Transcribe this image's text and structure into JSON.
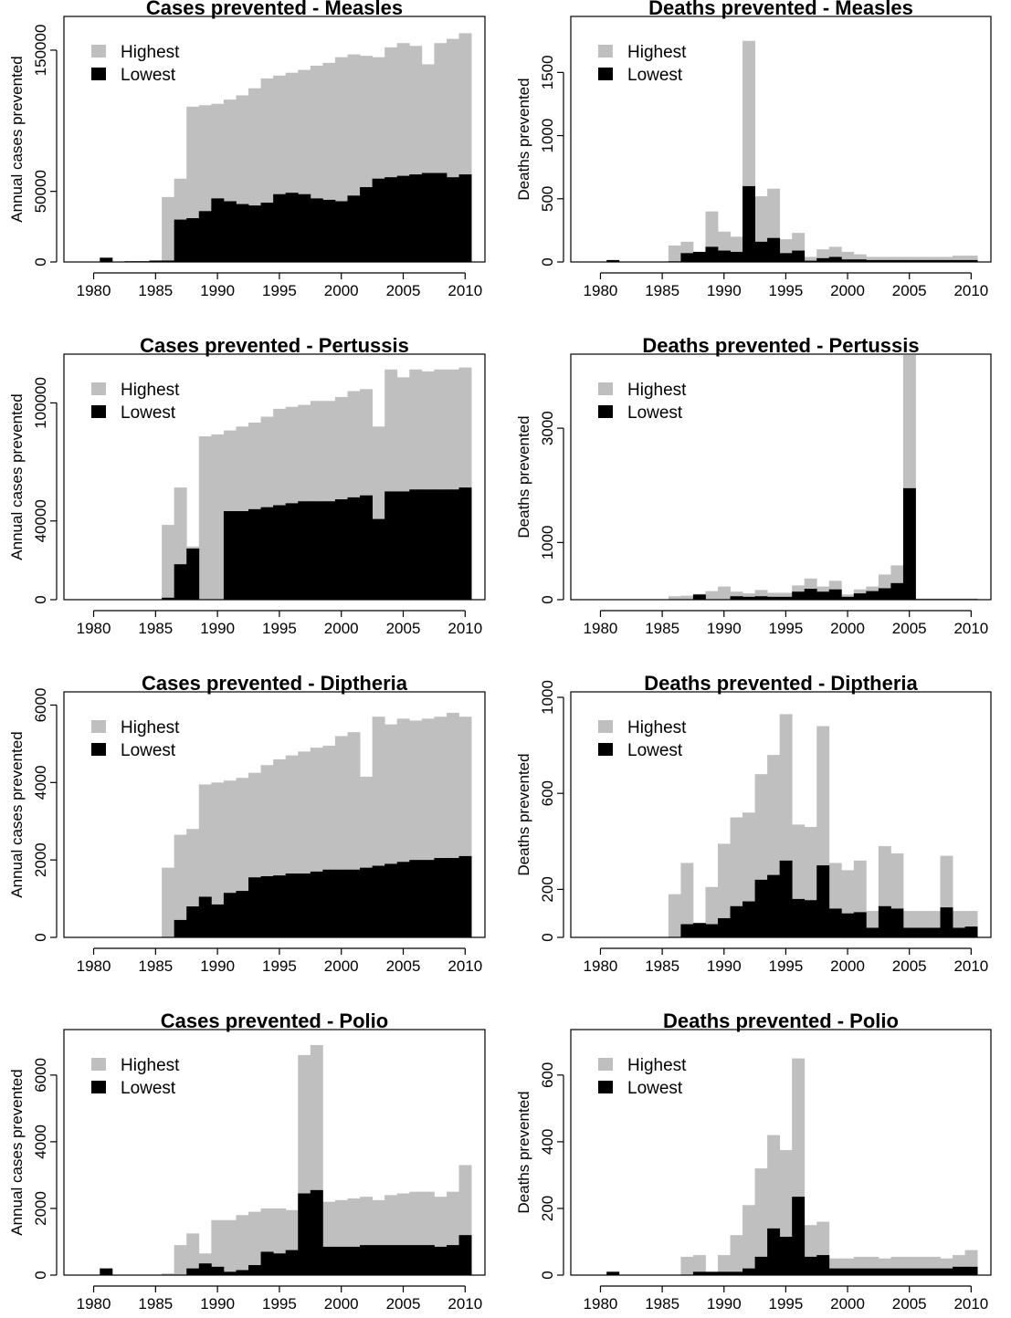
{
  "colors": {
    "highest": "#bfbfbf",
    "lowest": "#000000",
    "axis": "#000000",
    "background": "#ffffff"
  },
  "legend": {
    "highest_label": "Highest",
    "lowest_label": "Lowest",
    "placement": "top-left"
  },
  "chart_data": [
    {
      "type": "bar",
      "title": "Cases prevented - Measles",
      "ylabel": "Annual cases prevented",
      "x_start": 1980,
      "x_end": 2010,
      "xlim": [
        1980,
        2010.5
      ],
      "xticks": [
        1980,
        1985,
        1990,
        1995,
        2000,
        2005,
        2010
      ],
      "ylim": [
        0,
        170000
      ],
      "yticks": [
        0,
        50000,
        150000
      ],
      "ytick_labels": [
        "0",
        "50000",
        "150000"
      ],
      "series": [
        {
          "name": "Highest",
          "values": [
            0,
            3000,
            0,
            500,
            500,
            1000,
            46000,
            59000,
            110000,
            111000,
            112000,
            115000,
            118000,
            123000,
            130000,
            132000,
            134000,
            136000,
            139000,
            141000,
            145000,
            147000,
            146000,
            145000,
            152000,
            155000,
            153000,
            140000,
            155000,
            158000,
            162000
          ]
        },
        {
          "name": "Lowest",
          "values": [
            0,
            3000,
            0,
            500,
            500,
            1000,
            1000,
            30000,
            31000,
            36000,
            45000,
            43000,
            41000,
            40000,
            42000,
            48000,
            49000,
            48000,
            45000,
            44000,
            43000,
            47000,
            53000,
            59000,
            60000,
            61000,
            62000,
            63000,
            63000,
            60000,
            62000
          ]
        }
      ]
    },
    {
      "type": "bar",
      "title": "Deaths prevented - Measles",
      "ylabel": "Deaths prevented",
      "x_start": 1980,
      "x_end": 2010,
      "xlim": [
        1980,
        2010.5
      ],
      "xticks": [
        1980,
        1985,
        1990,
        1995,
        2000,
        2005,
        2010
      ],
      "ylim": [
        0,
        1900
      ],
      "yticks": [
        0,
        500,
        1000,
        1500
      ],
      "ytick_labels": [
        "0",
        "500",
        "1000",
        "1500"
      ],
      "series": [
        {
          "name": "Highest",
          "values": [
            0,
            15,
            0,
            0,
            0,
            0,
            130,
            160,
            80,
            400,
            240,
            200,
            1750,
            520,
            580,
            180,
            230,
            40,
            100,
            120,
            80,
            60,
            40,
            40,
            40,
            40,
            40,
            40,
            40,
            50,
            50
          ]
        },
        {
          "name": "Lowest",
          "values": [
            0,
            15,
            0,
            0,
            0,
            0,
            5,
            70,
            80,
            120,
            90,
            80,
            600,
            160,
            190,
            70,
            90,
            10,
            30,
            40,
            20,
            20,
            15,
            15,
            15,
            15,
            15,
            15,
            15,
            15,
            15
          ]
        }
      ]
    },
    {
      "type": "bar",
      "title": "Cases prevented - Pertussis",
      "ylabel": "Annual cases prevented",
      "x_start": 1980,
      "x_end": 2010,
      "xlim": [
        1980,
        2010.5
      ],
      "xticks": [
        1980,
        1985,
        1990,
        1995,
        2000,
        2005,
        2010
      ],
      "ylim": [
        0,
        122000
      ],
      "yticks": [
        0,
        40000,
        100000
      ],
      "ytick_labels": [
        "0",
        "40000",
        "100000"
      ],
      "series": [
        {
          "name": "Highest",
          "values": [
            0,
            0,
            0,
            0,
            0,
            0,
            38000,
            57000,
            27000,
            83000,
            84000,
            86000,
            88000,
            90000,
            93000,
            97000,
            98000,
            99000,
            101000,
            101000,
            103000,
            106000,
            107000,
            88000,
            117000,
            113000,
            117000,
            116000,
            117000,
            117000,
            118000
          ]
        },
        {
          "name": "Lowest",
          "values": [
            0,
            0,
            0,
            0,
            0,
            0,
            1000,
            18000,
            26000,
            0,
            0,
            45000,
            45000,
            46000,
            47000,
            48000,
            49000,
            50000,
            50000,
            50000,
            51000,
            52000,
            53000,
            41000,
            55000,
            55000,
            56000,
            56000,
            56000,
            56000,
            57000
          ]
        }
      ]
    },
    {
      "type": "bar",
      "title": "Deaths prevented - Pertussis",
      "ylabel": "Deaths prevented",
      "x_start": 1980,
      "x_end": 2010,
      "xlim": [
        1980,
        2010.5
      ],
      "xticks": [
        1980,
        1985,
        1990,
        1995,
        2000,
        2005,
        2010
      ],
      "ylim": [
        0,
        4200
      ],
      "yticks": [
        0,
        1000,
        3000
      ],
      "ytick_labels": [
        "0",
        "1000",
        "3000"
      ],
      "series": [
        {
          "name": "Highest",
          "values": [
            0,
            0,
            0,
            0,
            0,
            0,
            60,
            70,
            100,
            150,
            230,
            140,
            110,
            170,
            120,
            120,
            250,
            370,
            230,
            330,
            90,
            180,
            230,
            440,
            600,
            4280,
            20,
            20,
            20,
            20,
            20
          ]
        },
        {
          "name": "Lowest",
          "values": [
            0,
            0,
            0,
            0,
            0,
            0,
            0,
            0,
            90,
            0,
            0,
            60,
            50,
            60,
            50,
            50,
            140,
            190,
            140,
            180,
            50,
            110,
            150,
            200,
            290,
            1950,
            10,
            10,
            10,
            10,
            10
          ]
        }
      ]
    },
    {
      "type": "bar",
      "title": "Cases prevented - Diptheria",
      "ylabel": "Annual cases prevented",
      "x_start": 1980,
      "x_end": 2010,
      "xlim": [
        1980,
        2010.5
      ],
      "xticks": [
        1980,
        1985,
        1990,
        1995,
        2000,
        2005,
        2010
      ],
      "ylim": [
        0,
        6200
      ],
      "yticks": [
        0,
        2000,
        4000,
        6000
      ],
      "ytick_labels": [
        "0",
        "2000",
        "4000",
        "6000"
      ],
      "series": [
        {
          "name": "Highest",
          "values": [
            0,
            0,
            0,
            0,
            0,
            0,
            1800,
            2650,
            2800,
            3950,
            4000,
            4050,
            4120,
            4250,
            4450,
            4600,
            4700,
            4800,
            4900,
            4950,
            5200,
            5300,
            4150,
            5700,
            5500,
            5650,
            5600,
            5650,
            5700,
            5800,
            5700
          ]
        },
        {
          "name": "Lowest",
          "values": [
            0,
            0,
            0,
            0,
            0,
            0,
            0,
            450,
            800,
            1050,
            850,
            1150,
            1200,
            1550,
            1580,
            1600,
            1650,
            1650,
            1700,
            1750,
            1750,
            1750,
            1800,
            1850,
            1900,
            1950,
            2000,
            2000,
            2050,
            2050,
            2100
          ]
        }
      ]
    },
    {
      "type": "bar",
      "title": "Deaths prevented - Diptheria",
      "ylabel": "Deaths prevented",
      "x_start": 1980,
      "x_end": 2010,
      "xlim": [
        1980,
        2010.5
      ],
      "xticks": [
        1980,
        1985,
        1990,
        1995,
        2000,
        2005,
        2010
      ],
      "ylim": [
        0,
        1000
      ],
      "yticks": [
        0,
        200,
        600,
        1000
      ],
      "ytick_labels": [
        "0",
        "200",
        "600",
        "1000"
      ],
      "series": [
        {
          "name": "Highest",
          "values": [
            0,
            0,
            0,
            0,
            0,
            0,
            180,
            310,
            0,
            210,
            390,
            500,
            520,
            680,
            760,
            930,
            470,
            460,
            880,
            310,
            280,
            320,
            110,
            380,
            350,
            110,
            110,
            110,
            340,
            110,
            110
          ]
        },
        {
          "name": "Lowest",
          "values": [
            0,
            0,
            0,
            0,
            0,
            0,
            0,
            55,
            60,
            55,
            80,
            130,
            150,
            240,
            260,
            320,
            160,
            155,
            300,
            120,
            100,
            105,
            40,
            130,
            120,
            40,
            40,
            40,
            125,
            40,
            45
          ]
        }
      ]
    },
    {
      "type": "bar",
      "title": "Cases prevented - Polio",
      "ylabel": "Annual cases prevented",
      "x_start": 1980,
      "x_end": 2010,
      "xlim": [
        1980,
        2010.5
      ],
      "xticks": [
        1980,
        1985,
        1990,
        1995,
        2000,
        2005,
        2010
      ],
      "ylim": [
        0,
        7200
      ],
      "yticks": [
        0,
        2000,
        4000,
        6000
      ],
      "ytick_labels": [
        "0",
        "2000",
        "4000",
        "6000"
      ],
      "series": [
        {
          "name": "Highest",
          "values": [
            0,
            200,
            0,
            0,
            0,
            0,
            50,
            900,
            1250,
            650,
            1650,
            1650,
            1800,
            1900,
            2000,
            2000,
            1950,
            6600,
            6900,
            2200,
            2250,
            2300,
            2350,
            2250,
            2400,
            2450,
            2500,
            2500,
            2350,
            2500,
            3300
          ]
        },
        {
          "name": "Lowest",
          "values": [
            0,
            200,
            0,
            0,
            0,
            0,
            0,
            0,
            200,
            350,
            250,
            100,
            150,
            300,
            700,
            650,
            750,
            2450,
            2550,
            850,
            850,
            850,
            900,
            900,
            900,
            900,
            900,
            900,
            850,
            900,
            1200
          ]
        }
      ]
    },
    {
      "type": "bar",
      "title": "Deaths prevented - Polio",
      "ylabel": "Deaths prevented",
      "x_start": 1980,
      "x_end": 2010,
      "xlim": [
        1980,
        2010.5
      ],
      "xticks": [
        1980,
        1985,
        1990,
        1995,
        2000,
        2005,
        2010
      ],
      "ylim": [
        0,
        720
      ],
      "yticks": [
        0,
        200,
        400,
        600
      ],
      "ytick_labels": [
        "0",
        "200",
        "400",
        "600"
      ],
      "series": [
        {
          "name": "Highest",
          "values": [
            0,
            10,
            0,
            0,
            0,
            0,
            0,
            55,
            60,
            5,
            60,
            120,
            210,
            320,
            420,
            375,
            650,
            150,
            160,
            50,
            50,
            55,
            55,
            50,
            55,
            55,
            55,
            55,
            50,
            60,
            75
          ]
        },
        {
          "name": "Lowest",
          "values": [
            0,
            10,
            0,
            0,
            0,
            0,
            0,
            0,
            10,
            10,
            10,
            10,
            20,
            55,
            140,
            115,
            235,
            55,
            60,
            20,
            20,
            20,
            20,
            20,
            20,
            20,
            20,
            20,
            20,
            25,
            25
          ]
        }
      ]
    }
  ]
}
